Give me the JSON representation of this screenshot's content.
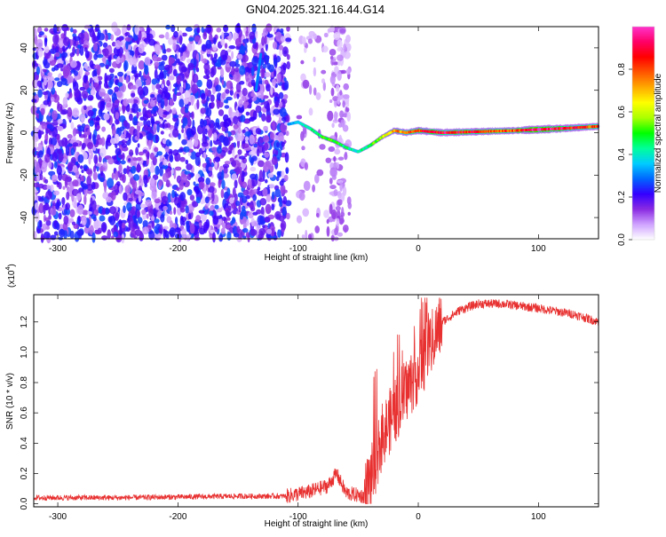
{
  "title": "GN04.2025.321.16.44.G14",
  "chart_data": [
    {
      "type": "heatmap",
      "xlabel": "Height of straight line (km)",
      "ylabel": "Frequency (Hz)",
      "xlim": [
        -320,
        150
      ],
      "ylim": [
        -50,
        50
      ],
      "xticks": [
        -300,
        -200,
        -100,
        0,
        100
      ],
      "yticks": [
        -40,
        -20,
        0,
        20,
        40
      ],
      "colorbar": {
        "label": "Normalized spectral amplitude",
        "range": [
          0,
          1
        ],
        "ticks": [
          "0.0",
          "0.2",
          "0.4",
          "0.6",
          "0.8"
        ],
        "tick_values": [
          0,
          0.2,
          0.4,
          0.6,
          0.8
        ],
        "colors": [
          "#ffffff",
          "#cfa3ff",
          "#8a2be2",
          "#3300ff",
          "#0066ff",
          "#00ccff",
          "#00ff99",
          "#00ff00",
          "#aaff00",
          "#ffff00",
          "#ffaa00",
          "#ff5500",
          "#ff0000",
          "#ff0066",
          "#ff33cc"
        ]
      },
      "noise_region": {
        "x_start": -320,
        "x_end": -108,
        "gap_start": -100,
        "gap_end": -73,
        "strip_start": -73,
        "strip_end": -57
      },
      "signal_ridge": [
        {
          "x": -108,
          "f": 4,
          "a": 0.3
        },
        {
          "x": -100,
          "f": 5,
          "a": 0.4
        },
        {
          "x": -90,
          "f": 2,
          "a": 0.45
        },
        {
          "x": -80,
          "f": -2,
          "a": 0.5
        },
        {
          "x": -70,
          "f": -4,
          "a": 0.55
        },
        {
          "x": -60,
          "f": -7,
          "a": 0.45
        },
        {
          "x": -50,
          "f": -9,
          "a": 0.4
        },
        {
          "x": -40,
          "f": -6,
          "a": 0.5
        },
        {
          "x": -30,
          "f": -2,
          "a": 0.6
        },
        {
          "x": -20,
          "f": 1,
          "a": 0.75
        },
        {
          "x": -10,
          "f": 0,
          "a": 0.8
        },
        {
          "x": 0,
          "f": 1,
          "a": 0.85
        },
        {
          "x": 20,
          "f": 0,
          "a": 0.9
        },
        {
          "x": 50,
          "f": 0.5,
          "a": 0.85
        },
        {
          "x": 80,
          "f": 1,
          "a": 0.8
        },
        {
          "x": 100,
          "f": 1.5,
          "a": 1.0
        },
        {
          "x": 120,
          "f": 2,
          "a": 0.9
        },
        {
          "x": 150,
          "f": 3,
          "a": 0.8
        }
      ]
    },
    {
      "type": "line",
      "xlabel": "Height of straight line (km)",
      "ylabel": "SNR (10 * v/v)",
      "y_multiplier": "(x10",
      "y_multiplier_exp": "4",
      "xlim": [
        -320,
        150
      ],
      "ylim": [
        -0.02,
        1.38
      ],
      "xticks": [
        -300,
        -200,
        -100,
        0,
        100
      ],
      "yticks": [
        0.0,
        0.2,
        0.4,
        0.6,
        0.8,
        1.0,
        1.2
      ],
      "ytick_labels": [
        "0.0",
        "0.2",
        "0.4",
        "0.6",
        "0.8",
        "1.0",
        "1.2"
      ],
      "line_color": "#e83030",
      "series_envelope": [
        {
          "x": -320,
          "y": 0.04
        },
        {
          "x": -250,
          "y": 0.04
        },
        {
          "x": -200,
          "y": 0.045
        },
        {
          "x": -150,
          "y": 0.05
        },
        {
          "x": -110,
          "y": 0.05
        },
        {
          "x": -90,
          "y": 0.08
        },
        {
          "x": -75,
          "y": 0.12
        },
        {
          "x": -68,
          "y": 0.2
        },
        {
          "x": -60,
          "y": 0.07
        },
        {
          "x": -45,
          "y": 0.05
        },
        {
          "x": -38,
          "y": 0.2
        },
        {
          "x": -30,
          "y": 0.45
        },
        {
          "x": -20,
          "y": 0.6
        },
        {
          "x": -10,
          "y": 0.75
        },
        {
          "x": 0,
          "y": 0.88
        },
        {
          "x": 10,
          "y": 1.05
        },
        {
          "x": 20,
          "y": 1.2
        },
        {
          "x": 35,
          "y": 1.28
        },
        {
          "x": 50,
          "y": 1.32
        },
        {
          "x": 70,
          "y": 1.32
        },
        {
          "x": 100,
          "y": 1.29
        },
        {
          "x": 130,
          "y": 1.25
        },
        {
          "x": 150,
          "y": 1.2
        }
      ]
    }
  ]
}
